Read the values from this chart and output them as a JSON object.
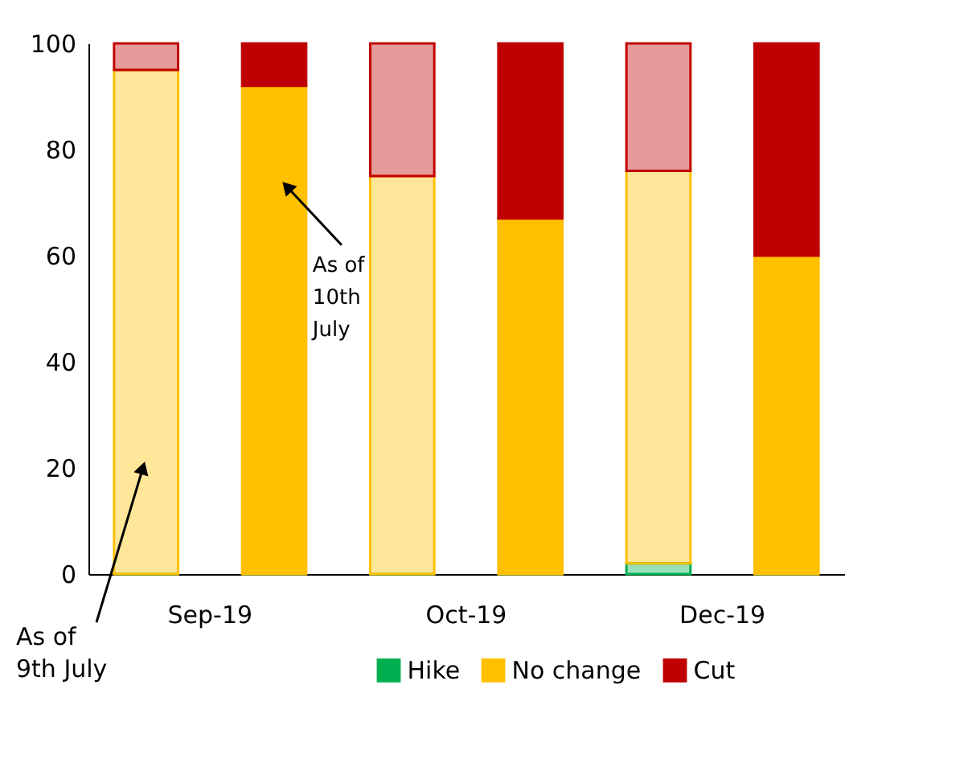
{
  "chart_data": {
    "type": "bar",
    "stacked": true,
    "categories": [
      "Sep-19",
      null,
      "Oct-19",
      null,
      "Dec-19",
      null
    ],
    "series": [
      {
        "name": "Hike",
        "color": "#00b050",
        "values": [
          0,
          0,
          0,
          0,
          2,
          0
        ]
      },
      {
        "name": "No change",
        "color": "#ffc000",
        "values": [
          95,
          92,
          75,
          67,
          74,
          60
        ]
      },
      {
        "name": "Cut",
        "color": "#c00000",
        "values": [
          5,
          8,
          25,
          33,
          24,
          40
        ]
      }
    ],
    "ylim": [
      0,
      100
    ],
    "yticks": [
      0,
      20,
      40,
      60,
      80,
      100
    ],
    "grid": false,
    "legend": "bottom",
    "annotations": [
      "As of\n10th\nJuly",
      "As of\n9th July"
    ]
  }
}
